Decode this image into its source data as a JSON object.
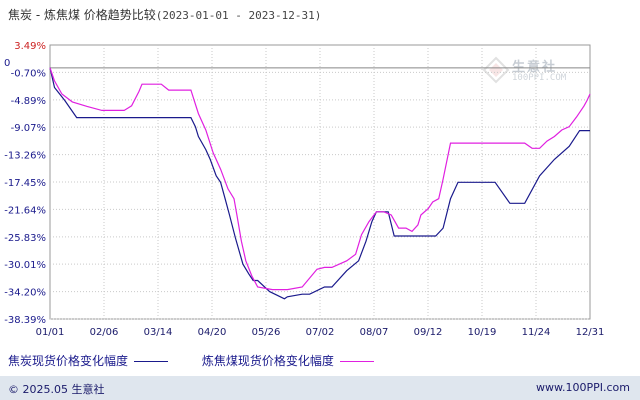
{
  "title": {
    "main": "焦炭 - 炼焦煤 价格趋势比较",
    "range": "(2023-01-01 - 2023-12-31)"
  },
  "watermark": {
    "name": "生意社",
    "url": "100PPI.COM"
  },
  "footer": {
    "copyright": "© 2025.05 生意社",
    "site": "www.100PPI.com"
  },
  "colors": {
    "series1": "#1a1a8c",
    "series2": "#e020e0",
    "neg_tick": "#1a1a8c",
    "pos_tick": "#cc2222",
    "grid": "#c9c9c9"
  },
  "chart_data": {
    "type": "line",
    "y_ticks": [
      "3.49%",
      "0",
      "-0.70%",
      "-4.89%",
      "-9.07%",
      "-13.26%",
      "-17.45%",
      "-21.64%",
      "-25.83%",
      "-30.01%",
      "-34.20%",
      "-38.39%"
    ],
    "x_ticks": [
      "01/01",
      "02/06",
      "03/14",
      "04/20",
      "05/26",
      "07/02",
      "08/07",
      "09/12",
      "10/19",
      "11/24",
      "12/31"
    ],
    "ylim": [
      -38.39,
      3.49
    ],
    "xlim": [
      0,
      364
    ],
    "series": [
      {
        "name": "焦炭现货价格变化幅度",
        "x": [
          0,
          3,
          10,
          18,
          60,
          95,
          98,
          100,
          105,
          108,
          112,
          115,
          118,
          121,
          125,
          130,
          134,
          137,
          140,
          148,
          158,
          160,
          170,
          175,
          185,
          190,
          200,
          208,
          213,
          217,
          220,
          224,
          228,
          232,
          237,
          242,
          250,
          260,
          265,
          270,
          275,
          280,
          290,
          300,
          310,
          320,
          330,
          340,
          350,
          357,
          364
        ],
        "y": [
          0.0,
          -3.0,
          -5.0,
          -7.6,
          -7.6,
          -7.6,
          -9.0,
          -10.5,
          -12.5,
          -14.0,
          -16.5,
          -17.5,
          -20.0,
          -22.5,
          -26.0,
          -30.0,
          -31.5,
          -32.5,
          -32.5,
          -34.2,
          -35.3,
          -35.0,
          -34.6,
          -34.6,
          -33.5,
          -33.5,
          -31.0,
          -29.5,
          -26.5,
          -23.5,
          -22.0,
          -22.0,
          -22.0,
          -25.7,
          -25.7,
          -25.7,
          -25.7,
          -25.7,
          -24.5,
          -20.0,
          -17.5,
          -17.5,
          -17.5,
          -17.5,
          -20.7,
          -20.7,
          -16.5,
          -14.0,
          -12.0,
          -9.6,
          -9.6
        ]
      },
      {
        "name": "炼焦煤现货价格变化幅度",
        "x": [
          0,
          3,
          8,
          15,
          25,
          35,
          50,
          55,
          60,
          62,
          65,
          70,
          75,
          80,
          85,
          90,
          95,
          100,
          105,
          110,
          115,
          120,
          124,
          126,
          129,
          132,
          136,
          140,
          150,
          160,
          170,
          180,
          185,
          190,
          200,
          206,
          210,
          215,
          220,
          225,
          230,
          235,
          240,
          244,
          248,
          250,
          255,
          258,
          262,
          265,
          270,
          280,
          290,
          300,
          310,
          320,
          325,
          330,
          335,
          340,
          345,
          350,
          355,
          360,
          362,
          364
        ],
        "y": [
          0.0,
          -2.0,
          -4.0,
          -5.2,
          -5.9,
          -6.5,
          -6.5,
          -5.8,
          -3.6,
          -2.5,
          -2.5,
          -2.5,
          -2.5,
          -3.4,
          -3.4,
          -3.4,
          -3.4,
          -7.0,
          -9.5,
          -13.0,
          -15.5,
          -18.5,
          -20.0,
          -22.5,
          -26.5,
          -29.5,
          -31.8,
          -33.5,
          -33.9,
          -33.9,
          -33.5,
          -30.8,
          -30.5,
          -30.5,
          -29.5,
          -28.5,
          -25.5,
          -23.5,
          -22.0,
          -22.0,
          -22.5,
          -24.5,
          -24.5,
          -25.0,
          -24.0,
          -22.5,
          -21.5,
          -20.5,
          -20.0,
          -17.0,
          -11.5,
          -11.5,
          -11.5,
          -11.5,
          -11.5,
          -11.5,
          -12.3,
          -12.3,
          -11.2,
          -10.5,
          -9.5,
          -9.0,
          -7.5,
          -5.8,
          -5.0,
          -4.0
        ]
      }
    ],
    "legend": "bottom",
    "grid": true
  }
}
